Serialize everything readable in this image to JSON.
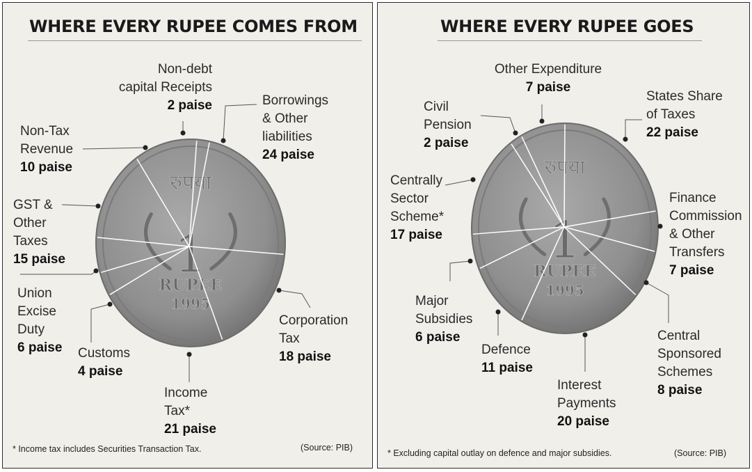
{
  "chart_data": [
    {
      "type": "pie",
      "title": "WHERE EVERY RUPEE COMES FROM",
      "unit": "paise",
      "slices": [
        {
          "name": "Corporation\nTax",
          "value": 18,
          "value_label": "18 paise"
        },
        {
          "name": "Income\nTax*",
          "value": 21,
          "value_label": "21 paise"
        },
        {
          "name": "Customs",
          "value": 4,
          "value_label": "4 paise"
        },
        {
          "name": "Union\nExcise\nDuty",
          "value": 6,
          "value_label": "6 paise"
        },
        {
          "name": "GST &\nOther\nTaxes",
          "value": 15,
          "value_label": "15 paise"
        },
        {
          "name": "Non-Tax\nRevenue",
          "value": 10,
          "value_label": "10 paise"
        },
        {
          "name": "Non-debt\ncapital Receipts",
          "value": 2,
          "value_label": "2 paise"
        },
        {
          "name": "Borrowings\n& Other\nliabilities",
          "value": 24,
          "value_label": "24 paise"
        }
      ],
      "footnote": "* Income tax includes Securities Transaction Tax.",
      "source": "(Source: PIB)"
    },
    {
      "type": "pie",
      "title": "WHERE EVERY RUPEE GOES",
      "unit": "paise",
      "slices": [
        {
          "name": "States Share\nof Taxes",
          "value": 22,
          "value_label": "22 paise"
        },
        {
          "name": "Finance\nCommission\n& Other\nTransfers",
          "value": 7,
          "value_label": "7 paise"
        },
        {
          "name": "Central\nSponsored\nSchemes",
          "value": 8,
          "value_label": "8 paise"
        },
        {
          "name": "Interest\nPayments",
          "value": 20,
          "value_label": "20 paise"
        },
        {
          "name": "Defence",
          "value": 11,
          "value_label": "11 paise"
        },
        {
          "name": "Major\nSubsidies",
          "value": 6,
          "value_label": "6 paise"
        },
        {
          "name": "Centrally\nSector\nScheme*",
          "value": 17,
          "value_label": "17 paise"
        },
        {
          "name": "Civil\nPension",
          "value": 2,
          "value_label": "2 paise"
        },
        {
          "name": "Other Expenditure",
          "value": 7,
          "value_label": "7 paise"
        }
      ],
      "footnote": "* Excluding capital outlay on defence and major subsidies.",
      "source": "(Source: PIB)"
    }
  ],
  "coin": {
    "script_text": "रुपया",
    "denomination": "1",
    "word": "RUPEE",
    "year": "1995"
  },
  "colors": {
    "panel_bg": "#f1efea",
    "coin_face": "#8f8f8f",
    "coin_rim": "#6c6c6c",
    "divider": "#ffffff",
    "leader": "#555555"
  }
}
